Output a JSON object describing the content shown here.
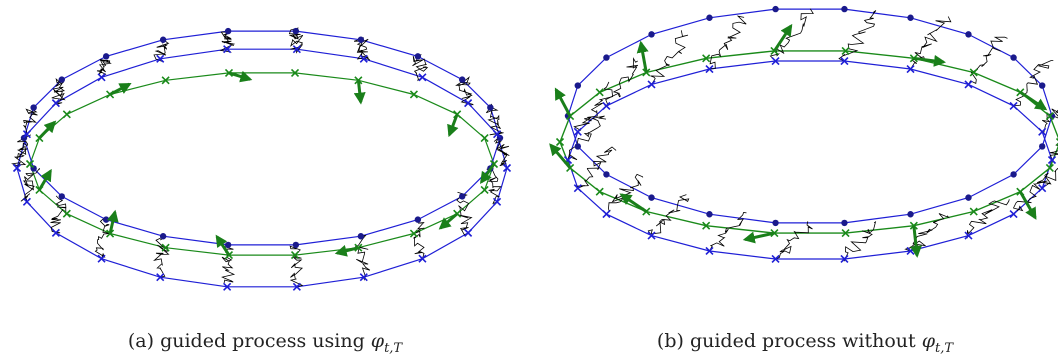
{
  "panels": [
    {
      "id": "a",
      "caption_prefix": "(a) guided process using ",
      "caption_phi": "φ",
      "caption_sub": "t,T"
    },
    {
      "id": "b",
      "caption_prefix": "(b) guided process without ",
      "caption_phi": "φ",
      "caption_sub": "t,T"
    }
  ],
  "colors": {
    "target_curve": "#1f1fd6",
    "source_curve": "#1f1fd6",
    "guided_curve": "#1a8a1a",
    "paths": "#000000",
    "arrows": "#1a7f1a",
    "dots": "#1a1a8c"
  },
  "icons": [
    "cross-marker",
    "dot-marker",
    "arrow-marker"
  ]
}
